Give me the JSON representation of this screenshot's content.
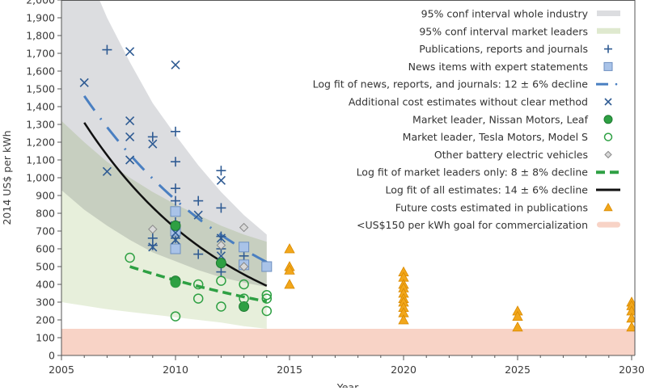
{
  "chart_data": {
    "type": "scatter",
    "xlabel": "Year",
    "ylabel": "2014 US$ per kWh",
    "xlim": [
      2005,
      2030
    ],
    "ylim": [
      0,
      2000
    ],
    "xticks": [
      "2005",
      "2010",
      "2015",
      "2020",
      "2025",
      "2030"
    ],
    "yticks": [
      "0",
      "100",
      "200",
      "300",
      "400",
      "500",
      "600",
      "700",
      "800",
      "900",
      "1,000",
      "1,100",
      "1,200",
      "1,300",
      "1,400",
      "1,500",
      "1,600",
      "1,700",
      "1,800",
      "1,900",
      "2,000"
    ],
    "legend_position": "top-right",
    "bands": [
      {
        "name": "95% conf interval whole industry",
        "color": "#dcdde0",
        "x": [
          2005,
          2006,
          2007,
          2008,
          2009,
          2010,
          2011,
          2012,
          2013,
          2014
        ],
        "upper": [
          2600,
          2200,
          1900,
          1650,
          1420,
          1240,
          1070,
          920,
          790,
          680
        ],
        "lower": [
          930,
          820,
          730,
          650,
          580,
          530,
          480,
          440,
          410,
          385
        ]
      },
      {
        "name": "95% conf interval market leaders",
        "color": "#dfe9cf",
        "x": [
          2005,
          2006,
          2007,
          2008,
          2009,
          2010,
          2011,
          2012,
          2013,
          2014
        ],
        "upper": [
          1320,
          1200,
          1090,
          1000,
          920,
          850,
          790,
          730,
          680,
          640
        ],
        "lower": [
          300,
          280,
          260,
          245,
          230,
          215,
          200,
          185,
          165,
          150
        ]
      },
      {
        "name": "<US$150 per kWh goal for commercialization",
        "color": "#f8d3c6",
        "x": [
          2005,
          2030
        ],
        "upper": [
          150,
          150
        ],
        "lower": [
          0,
          0
        ]
      }
    ],
    "series": [
      {
        "name": "Publications, reports and journals",
        "marker": "plus",
        "color": "#2f5b93",
        "points": [
          [
            2007,
            1720
          ],
          [
            2009,
            1230
          ],
          [
            2009,
            660
          ],
          [
            2009,
            620
          ],
          [
            2010,
            1260
          ],
          [
            2010,
            1090
          ],
          [
            2010,
            940
          ],
          [
            2010,
            870
          ],
          [
            2010,
            750
          ],
          [
            2010,
            660
          ],
          [
            2011,
            870
          ],
          [
            2011,
            570
          ],
          [
            2012,
            1040
          ],
          [
            2012,
            830
          ],
          [
            2012,
            670
          ],
          [
            2012,
            600
          ],
          [
            2012,
            470
          ],
          [
            2013,
            560
          ]
        ]
      },
      {
        "name": "News items with expert statements",
        "marker": "square",
        "color": "#a9c3e8",
        "points": [
          [
            2010,
            810
          ],
          [
            2010,
            700
          ],
          [
            2010,
            600
          ],
          [
            2013,
            610
          ],
          [
            2013,
            510
          ],
          [
            2014,
            500
          ]
        ]
      },
      {
        "name": "Additional cost estimates without clear method",
        "marker": "x",
        "color": "#2f5b93",
        "points": [
          [
            2006,
            1535
          ],
          [
            2007,
            1035
          ],
          [
            2008,
            1710
          ],
          [
            2008,
            1320
          ],
          [
            2008,
            1230
          ],
          [
            2008,
            1100
          ],
          [
            2009,
            1190
          ],
          [
            2009,
            610
          ],
          [
            2010,
            1635
          ],
          [
            2010,
            690
          ],
          [
            2010,
            650
          ],
          [
            2011,
            790
          ],
          [
            2012,
            985
          ],
          [
            2012,
            660
          ],
          [
            2012,
            560
          ]
        ]
      },
      {
        "name": "Market leader, Nissan Motors, Leaf",
        "marker": "filled-circle",
        "color": "#2ea043",
        "points": [
          [
            2010,
            730
          ],
          [
            2010,
            420
          ],
          [
            2010,
            410
          ],
          [
            2012,
            520
          ],
          [
            2013,
            275
          ]
        ]
      },
      {
        "name": "Market leader, Tesla Motors, Model S",
        "marker": "open-circle",
        "color": "#2ea043",
        "points": [
          [
            2008,
            550
          ],
          [
            2010,
            220
          ],
          [
            2010,
            410
          ],
          [
            2011,
            400
          ],
          [
            2011,
            320
          ],
          [
            2012,
            420
          ],
          [
            2012,
            275
          ],
          [
            2013,
            400
          ],
          [
            2013,
            320
          ],
          [
            2014,
            340
          ],
          [
            2014,
            320
          ],
          [
            2014,
            250
          ]
        ]
      },
      {
        "name": "Other battery electric vehicles",
        "marker": "diamond",
        "color": "#888888",
        "points": [
          [
            2009,
            710
          ],
          [
            2012,
            620
          ],
          [
            2013,
            720
          ],
          [
            2013,
            500
          ]
        ]
      },
      {
        "name": "Future costs estimated in publications",
        "marker": "triangle",
        "color": "#f2a71b",
        "points": [
          [
            2015,
            600
          ],
          [
            2015,
            500
          ],
          [
            2015,
            480
          ],
          [
            2015,
            400
          ],
          [
            2020,
            470
          ],
          [
            2020,
            440
          ],
          [
            2020,
            400
          ],
          [
            2020,
            380
          ],
          [
            2020,
            350
          ],
          [
            2020,
            320
          ],
          [
            2020,
            300
          ],
          [
            2020,
            270
          ],
          [
            2020,
            240
          ],
          [
            2020,
            200
          ],
          [
            2025,
            250
          ],
          [
            2025,
            220
          ],
          [
            2025,
            160
          ],
          [
            2030,
            300
          ],
          [
            2030,
            280
          ],
          [
            2030,
            250
          ],
          [
            2030,
            210
          ],
          [
            2030,
            160
          ]
        ]
      }
    ],
    "fits": [
      {
        "name": "Log fit of news, reports, and journals: 12 ± 6% decline",
        "style": "dash-dot",
        "color": "#4a7fc1",
        "start": [
          2006,
          1460
        ],
        "end_year": 2014,
        "annual_decline": 0.12
      },
      {
        "name": "Log fit of market leaders only: 8 ± 8% decline",
        "style": "dashed",
        "color": "#2ea043",
        "start": [
          2008,
          500
        ],
        "end_year": 2014,
        "annual_decline": 0.08
      },
      {
        "name": "Log fit of all estimates: 14 ± 6% decline",
        "style": "solid",
        "color": "#111111",
        "start": [
          2006,
          1310
        ],
        "end_year": 2014,
        "annual_decline": 0.14
      }
    ],
    "legend": [
      {
        "label": "95% conf interval whole industry",
        "symbol": "band",
        "color": "#dcdde0"
      },
      {
        "label": "95% conf interval market leaders",
        "symbol": "band",
        "color": "#dfe9cf"
      },
      {
        "label": "Publications, reports and journals",
        "symbol": "plus",
        "color": "#2f5b93"
      },
      {
        "label": "News items with expert statements",
        "symbol": "square",
        "color": "#a9c3e8"
      },
      {
        "label": "Log fit of news, reports, and journals: 12 ± 6% decline",
        "symbol": "dash-dot",
        "color": "#4a7fc1"
      },
      {
        "label": "Additional cost estimates without clear method",
        "symbol": "x",
        "color": "#2f5b93"
      },
      {
        "label": "Market leader, Nissan Motors, Leaf",
        "symbol": "filled-circle",
        "color": "#2ea043"
      },
      {
        "label": "Market leader, Tesla Motors, Model S",
        "symbol": "open-circle",
        "color": "#2ea043"
      },
      {
        "label": "Other battery electric vehicles",
        "symbol": "diamond",
        "color": "#888888"
      },
      {
        "label": "Log fit of market leaders only: 8 ± 8% decline",
        "symbol": "dashed",
        "color": "#2ea043"
      },
      {
        "label": "Log fit of all estimates: 14 ± 6% decline",
        "symbol": "solid",
        "color": "#111111"
      },
      {
        "label": "Future costs estimated in publications",
        "symbol": "triangle",
        "color": "#f2a71b"
      },
      {
        "label": "<US$150 per kWh goal for commercialization",
        "symbol": "band",
        "color": "#f8d3c6"
      }
    ]
  }
}
